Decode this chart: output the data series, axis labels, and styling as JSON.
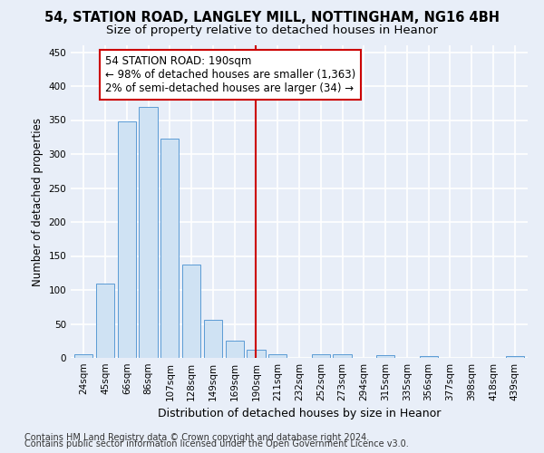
{
  "title": "54, STATION ROAD, LANGLEY MILL, NOTTINGHAM, NG16 4BH",
  "subtitle": "Size of property relative to detached houses in Heanor",
  "xlabel": "Distribution of detached houses by size in Heanor",
  "ylabel": "Number of detached properties",
  "categories": [
    "24sqm",
    "45sqm",
    "66sqm",
    "86sqm",
    "107sqm",
    "128sqm",
    "149sqm",
    "169sqm",
    "190sqm",
    "211sqm",
    "232sqm",
    "252sqm",
    "273sqm",
    "294sqm",
    "315sqm",
    "335sqm",
    "356sqm",
    "377sqm",
    "398sqm",
    "418sqm",
    "439sqm"
  ],
  "values": [
    5,
    110,
    348,
    370,
    323,
    138,
    56,
    26,
    12,
    5,
    0,
    6,
    6,
    0,
    4,
    0,
    3,
    0,
    0,
    0,
    3
  ],
  "bar_color": "#cfe2f3",
  "bar_edge_color": "#5b9bd5",
  "vline_x_index": 8,
  "vline_color": "#cc0000",
  "annotation_line1": "54 STATION ROAD: 190sqm",
  "annotation_line2": "← 98% of detached houses are smaller (1,363)",
  "annotation_line3": "2% of semi-detached houses are larger (34) →",
  "annotation_box_color": "#ffffff",
  "annotation_box_edge_color": "#cc0000",
  "ylim": [
    0,
    460
  ],
  "yticks": [
    0,
    50,
    100,
    150,
    200,
    250,
    300,
    350,
    400,
    450
  ],
  "background_color": "#e8eef8",
  "grid_color": "#ffffff",
  "footer_line1": "Contains HM Land Registry data © Crown copyright and database right 2024.",
  "footer_line2": "Contains public sector information licensed under the Open Government Licence v3.0.",
  "title_fontsize": 10.5,
  "subtitle_fontsize": 9.5,
  "xlabel_fontsize": 9,
  "ylabel_fontsize": 8.5,
  "tick_fontsize": 7.5,
  "annotation_fontsize": 8.5,
  "footer_fontsize": 7
}
